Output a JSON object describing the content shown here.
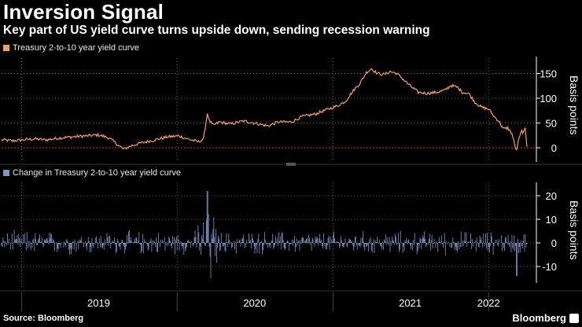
{
  "header": {
    "title": "Inversion Signal",
    "subtitle": "Key part of US yield curve turns upside down, sending recession warning"
  },
  "footer": {
    "source": "Source: Bloomberg",
    "brand": "Bloomberg"
  },
  "colors": {
    "background": "#000000",
    "level_series": "#f5a251",
    "change_series": "#7f96c8",
    "zero_line": "#e02020",
    "grid": "#555555",
    "axis_text": "#ffffff"
  },
  "chart_data": [
    {
      "type": "line",
      "legend": "Treasury 2-to-10 year yield curve",
      "ylabel": "Basis points",
      "yticks": [
        0,
        50,
        100,
        150
      ],
      "ylim": [
        -15,
        165
      ],
      "grid": true,
      "reference_line": 0,
      "x_range": [
        "2018-11-15",
        "2022-04-01"
      ],
      "series": [
        {
          "points": [
            [
              "2018-11-15",
              16
            ],
            [
              "2018-12-10",
              14
            ],
            [
              "2019-01-05",
              16
            ],
            [
              "2019-02-01",
              18
            ],
            [
              "2019-03-01",
              16
            ],
            [
              "2019-04-01",
              20
            ],
            [
              "2019-05-01",
              22
            ],
            [
              "2019-06-01",
              24
            ],
            [
              "2019-07-01",
              26
            ],
            [
              "2019-07-25",
              20
            ],
            [
              "2019-08-15",
              6
            ],
            [
              "2019-08-28",
              -3
            ],
            [
              "2019-09-15",
              4
            ],
            [
              "2019-10-10",
              10
            ],
            [
              "2019-11-10",
              16
            ],
            [
              "2019-12-10",
              22
            ],
            [
              "2020-01-05",
              24
            ],
            [
              "2020-01-25",
              18
            ],
            [
              "2020-02-20",
              12
            ],
            [
              "2020-03-03",
              18
            ],
            [
              "2020-03-09",
              52
            ],
            [
              "2020-03-12",
              70
            ],
            [
              "2020-03-16",
              56
            ],
            [
              "2020-03-25",
              45
            ],
            [
              "2020-04-10",
              52
            ],
            [
              "2020-05-05",
              48
            ],
            [
              "2020-06-05",
              54
            ],
            [
              "2020-07-01",
              50
            ],
            [
              "2020-08-01",
              44
            ],
            [
              "2020-08-25",
              52
            ],
            [
              "2020-09-25",
              52
            ],
            [
              "2020-10-20",
              63
            ],
            [
              "2020-11-20",
              68
            ],
            [
              "2020-12-20",
              78
            ],
            [
              "2021-01-10",
              84
            ],
            [
              "2021-01-30",
              94
            ],
            [
              "2021-02-20",
              118
            ],
            [
              "2021-03-05",
              130
            ],
            [
              "2021-03-20",
              152
            ],
            [
              "2021-04-01",
              160
            ],
            [
              "2021-04-15",
              150
            ],
            [
              "2021-05-01",
              148
            ],
            [
              "2021-05-15",
              154
            ],
            [
              "2021-05-31",
              150
            ],
            [
              "2021-06-15",
              138
            ],
            [
              "2021-07-01",
              125
            ],
            [
              "2021-07-20",
              112
            ],
            [
              "2021-08-10",
              110
            ],
            [
              "2021-09-01",
              112
            ],
            [
              "2021-09-20",
              116
            ],
            [
              "2021-10-05",
              126
            ],
            [
              "2021-10-20",
              122
            ],
            [
              "2021-11-01",
              112
            ],
            [
              "2021-11-15",
              110
            ],
            [
              "2021-11-30",
              92
            ],
            [
              "2021-12-15",
              82
            ],
            [
              "2022-01-01",
              78
            ],
            [
              "2022-01-15",
              62
            ],
            [
              "2022-01-25",
              54
            ],
            [
              "2022-02-05",
              38
            ],
            [
              "2022-02-15",
              40
            ],
            [
              "2022-02-25",
              28
            ],
            [
              "2022-03-05",
              0
            ],
            [
              "2022-03-08",
              -6
            ],
            [
              "2022-03-11",
              12
            ],
            [
              "2022-03-15",
              22
            ],
            [
              "2022-03-20",
              34
            ],
            [
              "2022-03-24",
              30
            ],
            [
              "2022-03-28",
              38
            ],
            [
              "2022-03-30",
              22
            ],
            [
              "2022-04-01",
              2
            ]
          ]
        }
      ]
    },
    {
      "type": "bar",
      "legend": "Change in Treasury 2-to-10 year yield curve",
      "ylabel": "Basis points",
      "yticks": [
        -10,
        0,
        10,
        20
      ],
      "ylim": [
        -15,
        24
      ],
      "grid": true,
      "note": "Daily changes, roughly within plus or minus 5 basis points, with spikes of about +22 and -15 in March 2020 and about -14 in March 2022"
    }
  ],
  "x_axis": {
    "labels": [
      {
        "text": "2019",
        "date": "2019-07-01"
      },
      {
        "text": "2020",
        "date": "2020-07-01"
      },
      {
        "text": "2021",
        "date": "2021-07-01"
      },
      {
        "text": "2022",
        "date": "2022-01-01"
      }
    ],
    "year_starts": [
      "2019-01-01",
      "2020-01-01",
      "2021-01-01",
      "2022-01-01"
    ]
  },
  "tick_labels_top": [
    "150",
    "100",
    "50",
    "0"
  ],
  "tick_labels_bottom": [
    "20",
    "10",
    "0",
    "-10"
  ]
}
